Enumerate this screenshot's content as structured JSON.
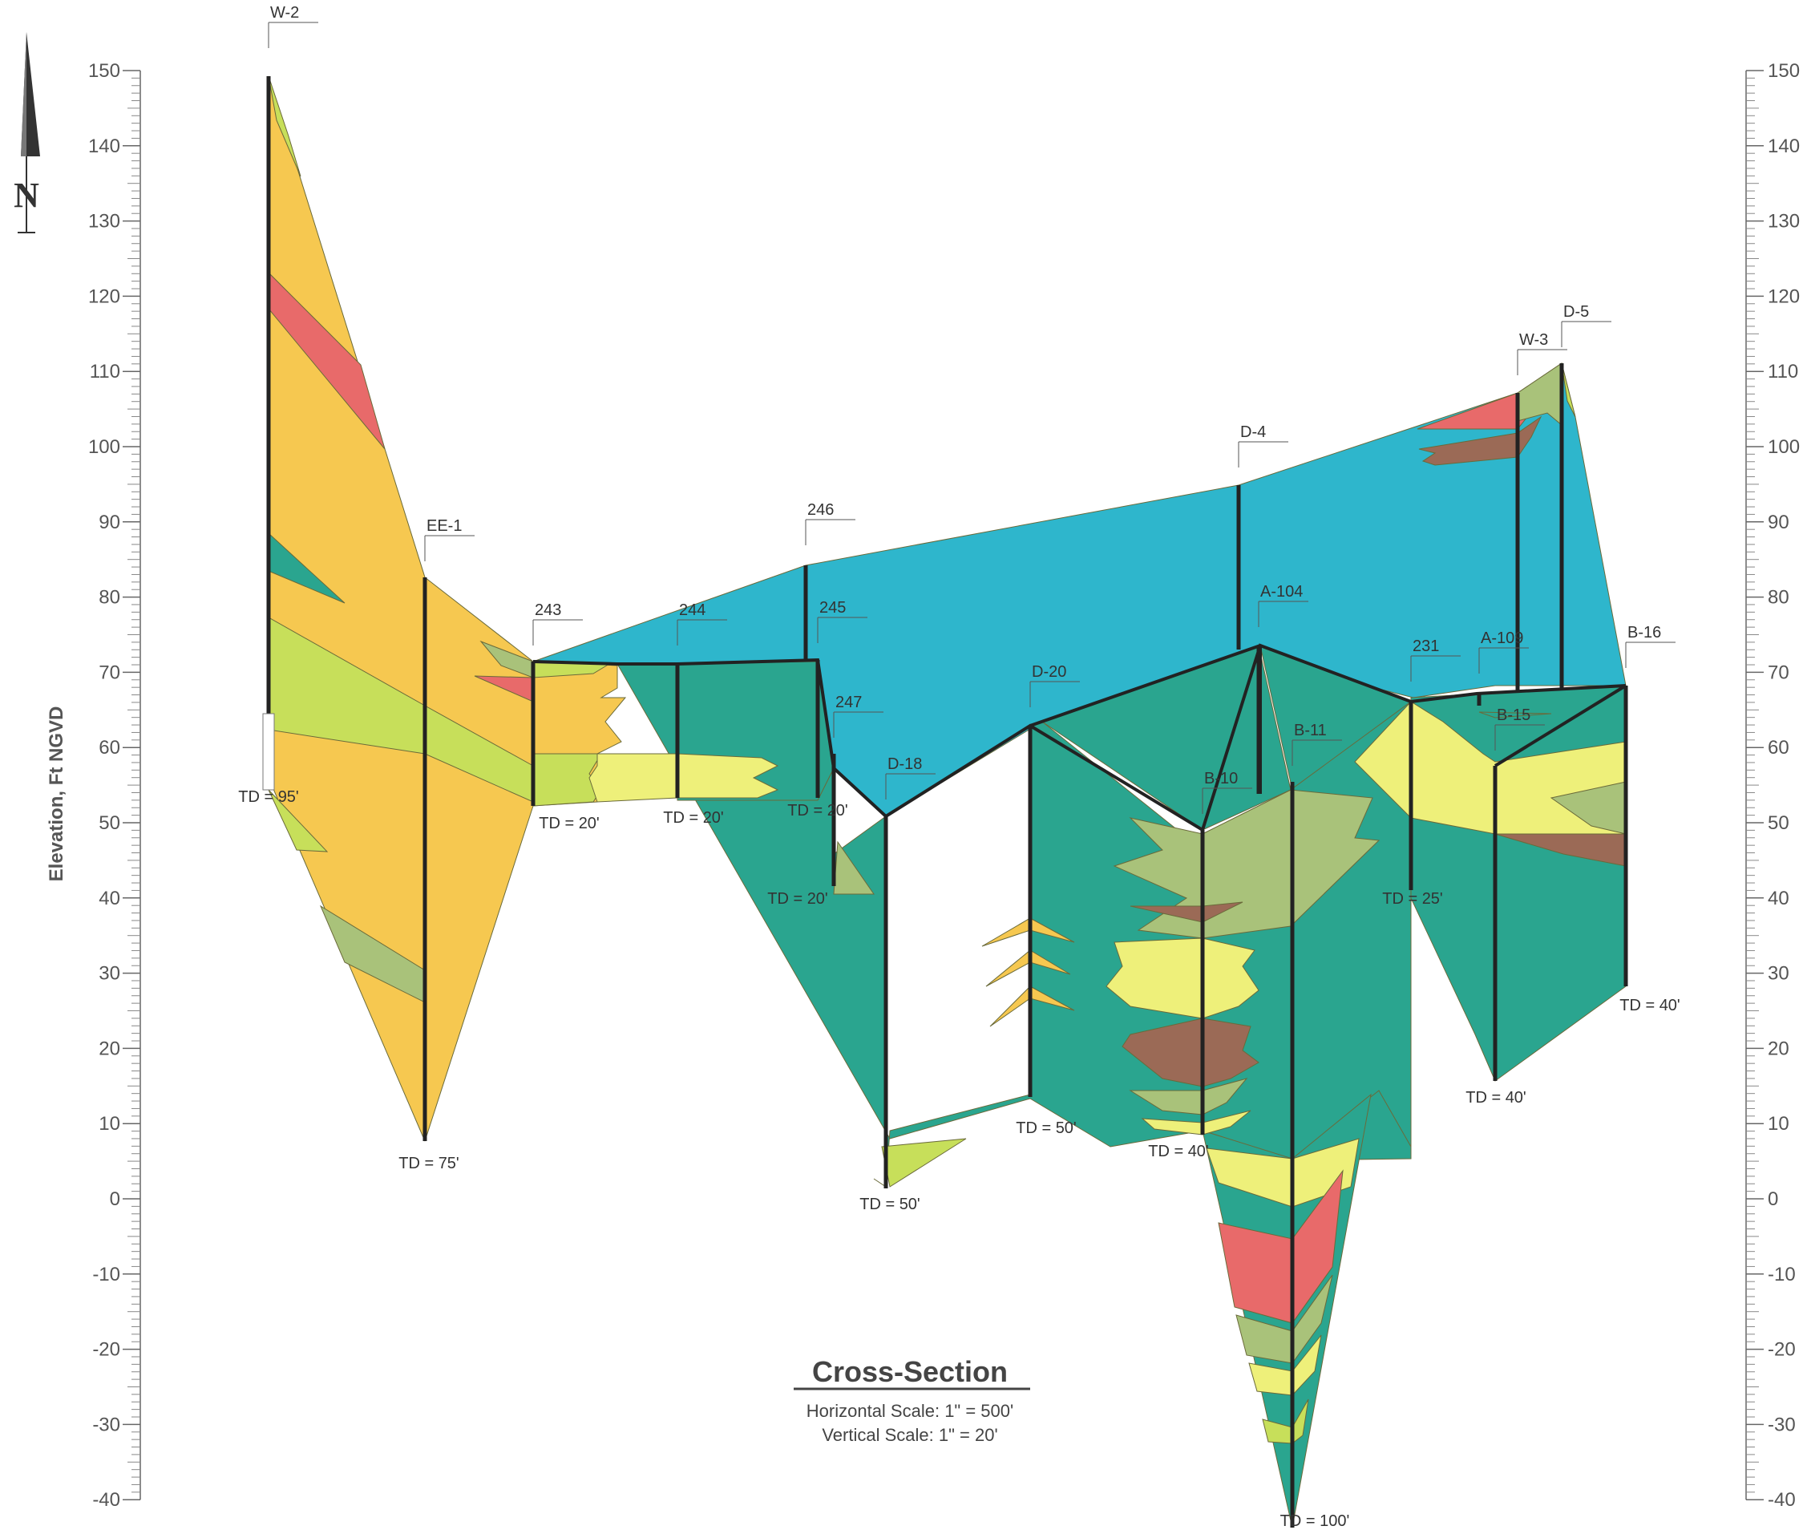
{
  "axis": {
    "title": "Elevation, Ft NGVD",
    "ticks": [
      "150",
      "140",
      "130",
      "120",
      "110",
      "100",
      "90",
      "80",
      "70",
      "60",
      "50",
      "40",
      "30",
      "20",
      "10",
      "0",
      "-10",
      "-20",
      "-30",
      "-40"
    ]
  },
  "north_label": "N",
  "title": {
    "main": "Cross-Section",
    "horizontal_scale": "Horizontal Scale:  1\" = 500'",
    "vertical_scale": "Vertical Scale:  1\" = 20'"
  },
  "wells": [
    {
      "name": "W-2",
      "td": "TD = 95'"
    },
    {
      "name": "EE-1",
      "td": "TD = 75'"
    },
    {
      "name": "243",
      "td": "TD = 20'"
    },
    {
      "name": "244",
      "td": "TD = 20'"
    },
    {
      "name": "246",
      "td": ""
    },
    {
      "name": "245",
      "td": "TD = 20'"
    },
    {
      "name": "247",
      "td": "TD = 20'"
    },
    {
      "name": "D-18",
      "td": "TD = 50'"
    },
    {
      "name": "D-20",
      "td": "TD = 50'"
    },
    {
      "name": "D-4",
      "td": ""
    },
    {
      "name": "A-104",
      "td": ""
    },
    {
      "name": "B-10",
      "td": "TD = 40'"
    },
    {
      "name": "B-11",
      "td": "TD = 100'"
    },
    {
      "name": "231",
      "td": "TD = 25'"
    },
    {
      "name": "A-109",
      "td": ""
    },
    {
      "name": "W-3",
      "td": ""
    },
    {
      "name": "D-5",
      "td": ""
    },
    {
      "name": "B-15",
      "td": "TD = 40'"
    },
    {
      "name": "B-16",
      "td": "TD = 40'"
    }
  ],
  "colors": {
    "sand_yellow": "#f6c850",
    "light_green": "#c7df5a",
    "sage": "#a9c27a",
    "red": "#e86a6a",
    "teal": "#2aa58f",
    "blue": "#2eb6cc",
    "brown": "#9b6a56",
    "pale_yellow": "#eef07a"
  }
}
